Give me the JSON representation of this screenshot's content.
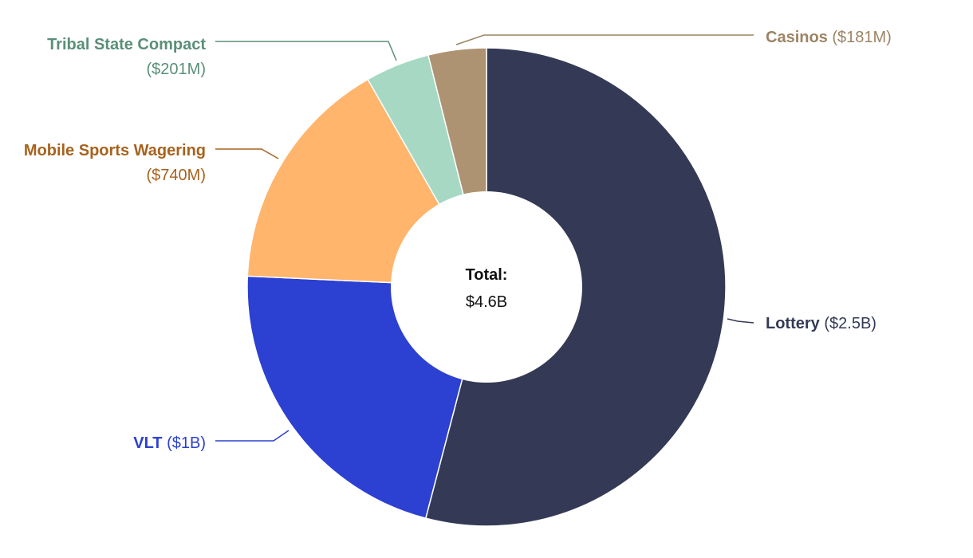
{
  "chart_data": {
    "type": "pie",
    "donut": true,
    "center_label": {
      "title": "Total:",
      "value": "$4.6B"
    },
    "slices": [
      {
        "name": "Lottery",
        "value_label": "($2.5B)",
        "value": 2.5,
        "color": "#343a55"
      },
      {
        "name": "VLT",
        "value_label": "($1B)",
        "value": 1.0,
        "color": "#2c40d1"
      },
      {
        "name": "Mobile Sports Wagering",
        "value_label": "($740M)",
        "value": 0.74,
        "color": "#ffb56b",
        "label_color": "#a7621d"
      },
      {
        "name": "Tribal State Compact",
        "value_label": "($201M)",
        "value": 0.201,
        "color": "#a6d8c3",
        "label_color": "#5a8f78"
      },
      {
        "name": "Casinos",
        "value_label": "($181M)",
        "value": 0.181,
        "color": "#ad9372",
        "label_color": "#9c8463"
      }
    ]
  }
}
